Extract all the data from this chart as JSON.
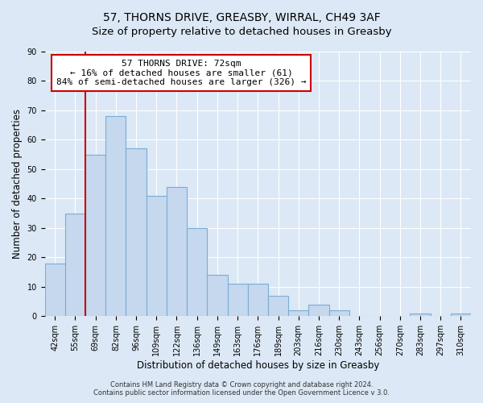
{
  "title": "57, THORNS DRIVE, GREASBY, WIRRAL, CH49 3AF",
  "subtitle": "Size of property relative to detached houses in Greasby",
  "xlabel": "Distribution of detached houses by size in Greasby",
  "ylabel": "Number of detached properties",
  "categories": [
    "42sqm",
    "55sqm",
    "69sqm",
    "82sqm",
    "96sqm",
    "109sqm",
    "122sqm",
    "136sqm",
    "149sqm",
    "163sqm",
    "176sqm",
    "189sqm",
    "203sqm",
    "216sqm",
    "230sqm",
    "243sqm",
    "256sqm",
    "270sqm",
    "283sqm",
    "297sqm",
    "310sqm"
  ],
  "values": [
    18,
    35,
    55,
    68,
    57,
    41,
    44,
    30,
    14,
    11,
    11,
    7,
    2,
    4,
    2,
    0,
    0,
    0,
    1,
    0,
    1
  ],
  "bar_color": "#c5d8ee",
  "bar_edge_color": "#7aadd4",
  "vline_index": 2,
  "vline_color": "#cc0000",
  "annotation_title": "57 THORNS DRIVE: 72sqm",
  "annotation_line1": "← 16% of detached houses are smaller (61)",
  "annotation_line2": "84% of semi-detached houses are larger (326) →",
  "annotation_box_facecolor": "#ffffff",
  "annotation_box_edgecolor": "#cc0000",
  "ylim": [
    0,
    90
  ],
  "yticks": [
    0,
    10,
    20,
    30,
    40,
    50,
    60,
    70,
    80,
    90
  ],
  "footer1": "Contains HM Land Registry data © Crown copyright and database right 2024.",
  "footer2": "Contains public sector information licensed under the Open Government Licence v 3.0.",
  "background_color": "#dce8f5",
  "plot_bg_color": "#dce8f5",
  "title_fontsize": 10,
  "axis_label_fontsize": 8.5,
  "tick_fontsize": 7,
  "annotation_fontsize": 8,
  "footer_fontsize": 6
}
